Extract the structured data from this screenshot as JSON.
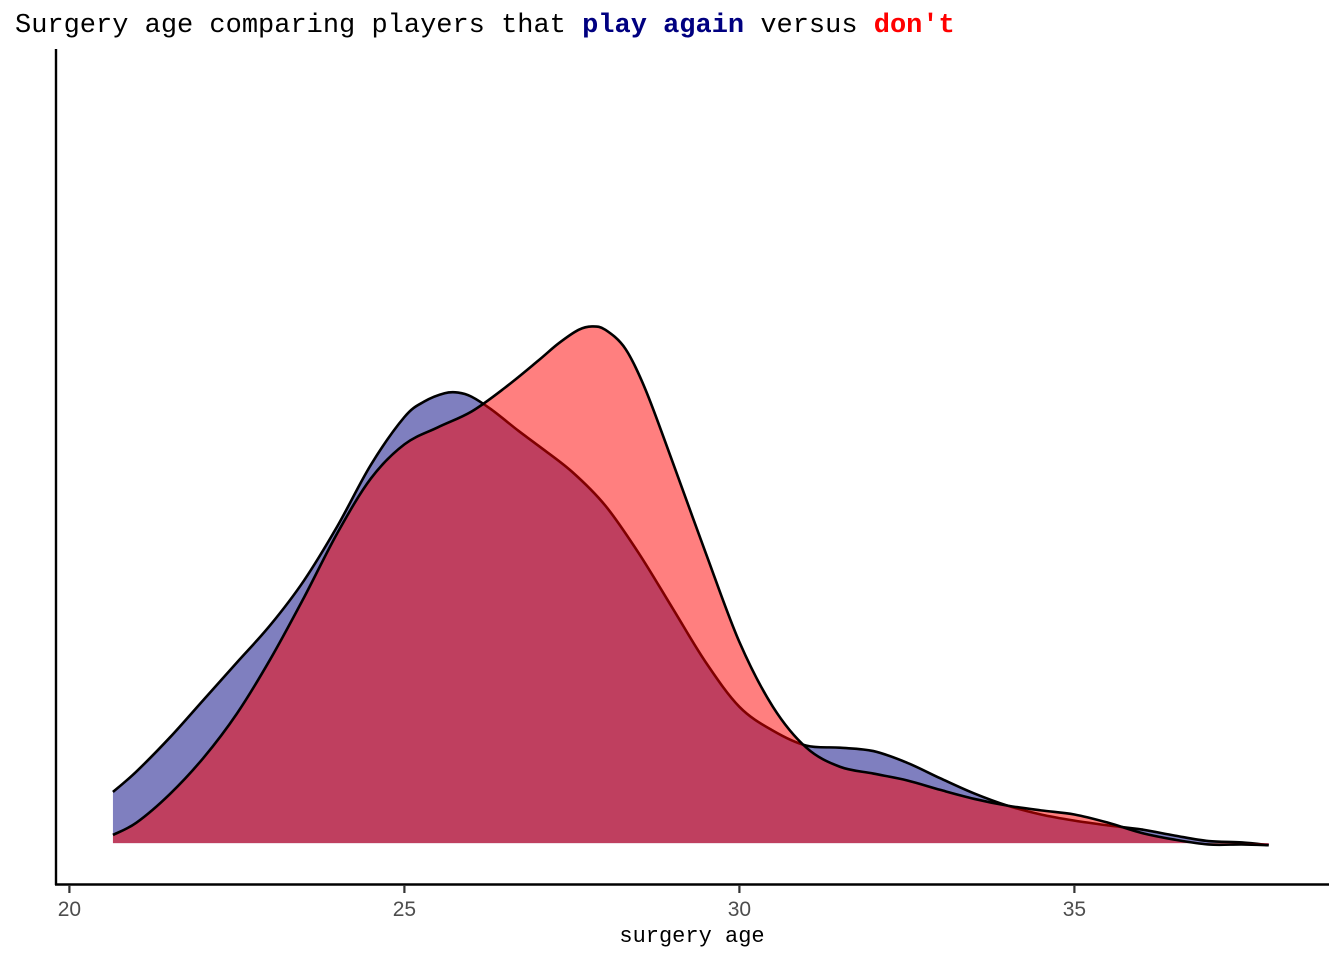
{
  "chart_data": {
    "type": "area",
    "title": {
      "prefix": "Surgery age comparing players that ",
      "play_again": "play again",
      "middle": " versus ",
      "dont": "don't"
    },
    "xlabel": "surgery age",
    "ylabel": "",
    "xlim": [
      19.8,
      38.8
    ],
    "ylim": [
      -0.006,
      0.1165
    ],
    "x_ticks": [
      20,
      25,
      30,
      35
    ],
    "tick_labels": [
      "20",
      "25",
      "30",
      "35"
    ],
    "y_ticks_visible": false,
    "grid": false,
    "legend": "none",
    "series": [
      {
        "name": "play again",
        "color": "#000080",
        "fill_opacity": 0.5,
        "x": [
          20.65,
          21.0,
          21.5,
          22.0,
          22.5,
          23.0,
          23.5,
          24.0,
          24.5,
          25.0,
          25.3,
          25.6,
          25.8,
          26.0,
          26.3,
          26.7,
          27.0,
          27.5,
          28.0,
          28.5,
          29.0,
          29.5,
          30.0,
          30.5,
          31.0,
          31.5,
          32.0,
          32.5,
          33.0,
          33.5,
          34.0,
          34.5,
          35.0,
          35.5,
          36.0,
          36.5,
          37.0,
          37.5,
          37.9
        ],
        "y": [
          0.0075,
          0.0105,
          0.0155,
          0.021,
          0.0265,
          0.032,
          0.0385,
          0.0465,
          0.0555,
          0.0625,
          0.0648,
          0.066,
          0.0661,
          0.0655,
          0.0636,
          0.0605,
          0.0583,
          0.0545,
          0.0495,
          0.0425,
          0.0345,
          0.0265,
          0.02,
          0.0165,
          0.0143,
          0.014,
          0.0135,
          0.0118,
          0.0095,
          0.0073,
          0.0055,
          0.0042,
          0.0033,
          0.0026,
          0.002,
          0.0011,
          0.0003,
          0.0001,
          -0.0003
        ]
      },
      {
        "name": "don't",
        "color": "#ff0000",
        "fill_opacity": 0.5,
        "x": [
          20.65,
          21.0,
          21.5,
          22.0,
          22.5,
          23.0,
          23.5,
          24.0,
          24.5,
          25.0,
          25.5,
          26.0,
          26.5,
          27.0,
          27.3,
          27.6,
          27.8,
          28.0,
          28.3,
          28.6,
          29.0,
          29.5,
          30.0,
          30.5,
          31.0,
          31.5,
          32.0,
          32.5,
          33.0,
          33.5,
          34.0,
          34.5,
          35.0,
          35.5,
          36.0,
          36.5,
          37.0,
          37.5,
          37.9
        ],
        "y": [
          0.0012,
          0.003,
          0.0072,
          0.0125,
          0.019,
          0.027,
          0.036,
          0.0455,
          0.0535,
          0.0585,
          0.061,
          0.0633,
          0.0668,
          0.0708,
          0.0733,
          0.0753,
          0.0758,
          0.0753,
          0.0725,
          0.0665,
          0.056,
          0.0425,
          0.0295,
          0.02,
          0.014,
          0.0112,
          0.0102,
          0.0092,
          0.0078,
          0.0065,
          0.0055,
          0.0048,
          0.0042,
          0.003,
          0.0015,
          0.0005,
          -0.0002,
          -0.0002,
          -0.0003
        ]
      }
    ]
  }
}
